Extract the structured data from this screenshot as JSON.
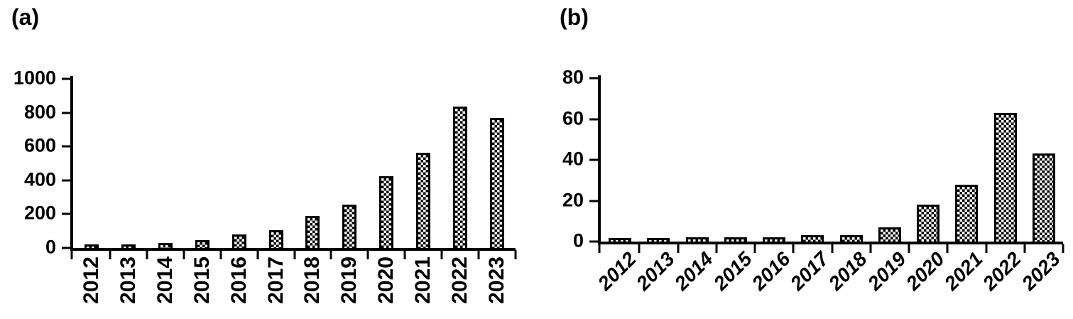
{
  "chart_data": [
    {
      "type": "bar",
      "panel_label": "(a)",
      "categories": [
        "2012",
        "2013",
        "2014",
        "2015",
        "2016",
        "2017",
        "2018",
        "2019",
        "2020",
        "2021",
        "2022",
        "2023"
      ],
      "values": [
        5,
        15,
        30,
        45,
        80,
        105,
        190,
        255,
        425,
        565,
        835,
        770
      ],
      "ylim": [
        0,
        1000
      ],
      "yticks": [
        0,
        200,
        400,
        600,
        800,
        1000
      ],
      "xlabel": "",
      "ylabel": "",
      "x_tick_rotation": "vertical",
      "legend": "none",
      "grid": false,
      "bar_style": "white fill with black checker trellis pattern, black outline",
      "axis_color": "#000000",
      "background_color": "#ffffff"
    },
    {
      "type": "bar",
      "panel_label": "(b)",
      "categories": [
        "2012",
        "2013",
        "2014",
        "2015",
        "2016",
        "2017",
        "2018",
        "2019",
        "2020",
        "2021",
        "2022",
        "2023"
      ],
      "values": [
        1,
        1,
        2,
        2,
        2,
        3,
        3,
        7,
        18,
        28,
        63,
        43
      ],
      "ylim": [
        0,
        80
      ],
      "yticks": [
        0,
        20,
        40,
        60,
        80
      ],
      "xlabel": "",
      "ylabel": "",
      "x_tick_rotation": "diagonal-45",
      "legend": "none",
      "grid": false,
      "bar_style": "white fill with black checker trellis pattern, black outline",
      "axis_color": "#000000",
      "background_color": "#ffffff"
    }
  ]
}
